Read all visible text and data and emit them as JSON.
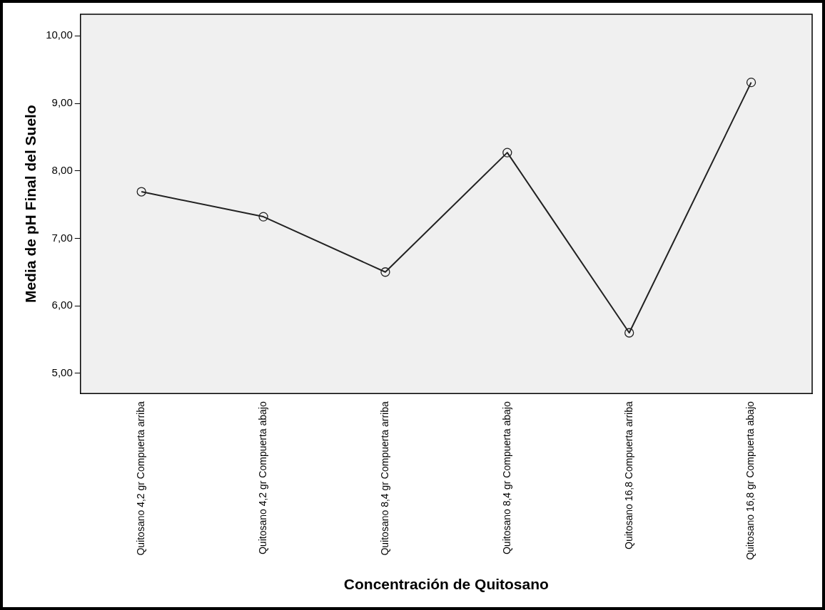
{
  "chart_data": {
    "type": "line",
    "xlabel": "Concentración de Quitosano",
    "ylabel": "Media de pH Final del Suelo",
    "categories": [
      "Quitosano 4,2 gr Compuerta arriba",
      "Quitosano 4,2 gr Compuerta abajo",
      "Quitosano 8,4 gr Compuerta arriba",
      "Quitosano 8,4 gr Compuerta abajo",
      "Quitosano 16,8 Compuerta arriba",
      "Quitosano 16,8 gr Compuerta abajo"
    ],
    "series": [
      {
        "color": "#222222",
        "values": [
          7.69,
          7.32,
          6.5,
          8.27,
          5.6,
          9.31
        ]
      }
    ],
    "ylim": [
      4.7,
      10.32
    ],
    "yticks": [
      {
        "value": 5,
        "label": "5,00"
      },
      {
        "value": 6,
        "label": "6,00"
      },
      {
        "value": 7,
        "label": "7,00"
      },
      {
        "value": 8,
        "label": "8,00"
      },
      {
        "value": 9,
        "label": "9,00"
      },
      {
        "value": 10,
        "label": "10,00"
      }
    ],
    "grid": false,
    "legend": false,
    "marker": "circle",
    "line_style": "solid"
  }
}
